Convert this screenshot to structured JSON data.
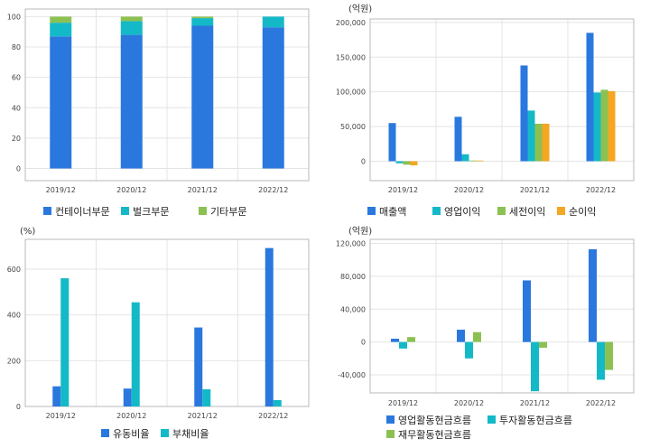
{
  "colors": {
    "blue": "#2a78de",
    "teal": "#14b9c8",
    "green": "#8cc152",
    "orange": "#f5a623"
  },
  "chart_data": [
    {
      "id": "business-segments",
      "type": "bar",
      "stacked": true,
      "unit": "",
      "categories": [
        "2019/12",
        "2020/12",
        "2021/12",
        "2022/12"
      ],
      "series": [
        {
          "name": "컨테이너부문",
          "values": [
            87,
            88,
            94,
            93
          ]
        },
        {
          "name": "벌크부문",
          "values": [
            9,
            9,
            5,
            7
          ]
        },
        {
          "name": "기타부문",
          "values": [
            4,
            3,
            1,
            0
          ]
        }
      ],
      "ylim": [
        -8,
        105
      ],
      "yticks": [
        0,
        20,
        40,
        60,
        80,
        100
      ],
      "legend": "bottom"
    },
    {
      "id": "profitability",
      "type": "bar",
      "unit": "(억원)",
      "categories": [
        "2019/12",
        "2020/12",
        "2021/12",
        "2022/12"
      ],
      "series": [
        {
          "name": "매출액",
          "values": [
            55000,
            64000,
            138000,
            185000
          ]
        },
        {
          "name": "영업이익",
          "values": [
            -3000,
            10000,
            73000,
            99000
          ]
        },
        {
          "name": "세전이익",
          "values": [
            -5000,
            1000,
            54000,
            103000
          ]
        },
        {
          "name": "순이익",
          "values": [
            -6000,
            1000,
            54000,
            101000
          ]
        }
      ],
      "ylim": [
        -28000,
        205000
      ],
      "yticks": [
        0,
        50000,
        100000,
        150000,
        200000
      ],
      "ytick_labels": [
        "0",
        "50,000",
        "100,000",
        "150,000",
        "200,000"
      ],
      "legend": "bottom"
    },
    {
      "id": "stability",
      "type": "bar",
      "unit": "(%)",
      "categories": [
        "2019/12",
        "2020/12",
        "2021/12",
        "2022/12"
      ],
      "series": [
        {
          "name": "유동비율",
          "values": [
            88,
            78,
            345,
            692
          ]
        },
        {
          "name": "부채비율",
          "values": [
            560,
            455,
            75,
            28
          ]
        }
      ],
      "ylim": [
        0,
        730
      ],
      "yticks": [
        0,
        200,
        400,
        600
      ],
      "legend": "bottom"
    },
    {
      "id": "cash-flow",
      "type": "bar",
      "unit": "(억원)",
      "categories": [
        "2019/12",
        "2020/12",
        "2021/12",
        "2022/12"
      ],
      "series": [
        {
          "name": "영업활동현금흐름",
          "values": [
            4000,
            15000,
            75000,
            113000
          ]
        },
        {
          "name": "투자활동현금흐름",
          "values": [
            -8000,
            -20000,
            -60000,
            -46000
          ]
        },
        {
          "name": "재무활동현금흐름",
          "values": [
            6000,
            12000,
            -7000,
            -34000
          ]
        }
      ],
      "ylim": [
        -62000,
        125000
      ],
      "yticks": [
        -40000,
        0,
        40000,
        80000,
        120000
      ],
      "ytick_labels": [
        "-40,000",
        "0",
        "40,000",
        "80,000",
        "120,000"
      ],
      "legend": "bottom"
    }
  ]
}
